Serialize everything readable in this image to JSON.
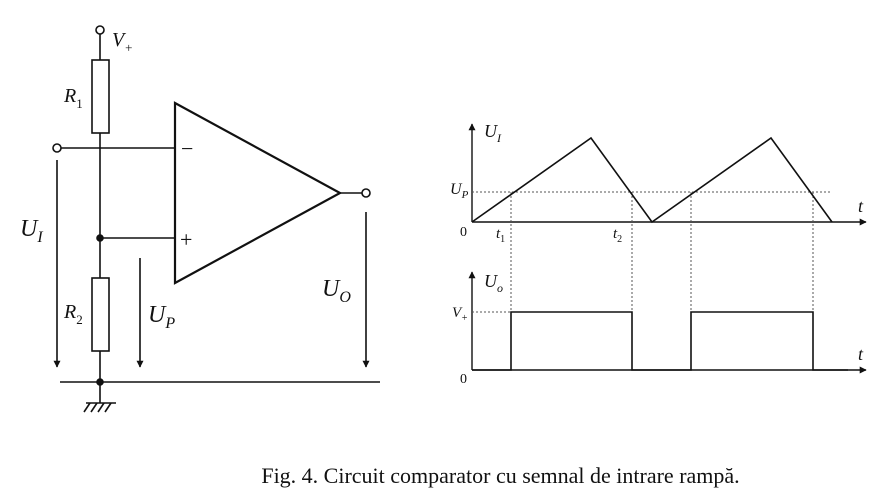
{
  "circuit": {
    "supply_label": "V",
    "supply_sub": "+",
    "r1_label": "R",
    "r1_sub": "1",
    "r2_label": "R",
    "r2_sub": "2",
    "minus_sign": "−",
    "plus_sign": "+",
    "ui_label": "U",
    "ui_sub": "I",
    "up_label": "U",
    "up_sub": "P",
    "uo_label": "U",
    "uo_sub": "O"
  },
  "graph_top": {
    "y_label": "U",
    "y_sub": "I",
    "x_label": "t",
    "up_label": "U",
    "up_sub": "P",
    "origin": "0",
    "t1_label": "t",
    "t1_sub": "1",
    "t2_label": "t",
    "t2_sub": "2"
  },
  "graph_bottom": {
    "y_label": "U",
    "y_sub": "o",
    "x_label": "t",
    "v_label": "V",
    "v_sub": "+",
    "origin": "0"
  },
  "caption": "Fig. 4. Circuit comparator cu semnal de intrare rampă."
}
